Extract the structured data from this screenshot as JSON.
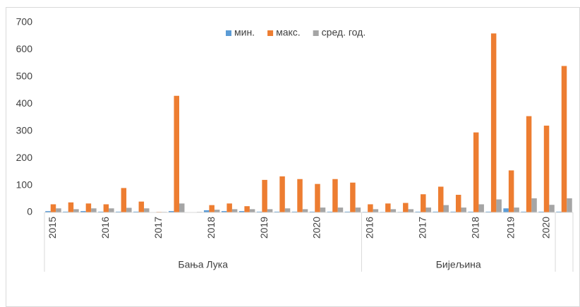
{
  "chart_data": {
    "type": "bar",
    "categories": [
      "2015",
      null,
      null,
      "2016",
      null,
      null,
      "2017",
      null,
      null,
      "2018",
      null,
      null,
      "2019",
      null,
      null,
      "2020",
      null,
      null,
      "2016",
      null,
      null,
      "2017",
      null,
      null,
      "2018",
      null,
      "2019",
      null,
      "2020",
      null
    ],
    "groups": [
      {
        "label": "Бања Лука",
        "count": 18
      },
      {
        "label": "Бијељина",
        "count": 11
      },
      {
        "label": null,
        "count": 1
      }
    ],
    "series": [
      {
        "name": "мин.",
        "color": "#5b9bd5",
        "values": [
          5,
          3,
          5,
          3,
          3,
          3,
          1,
          5,
          1,
          8,
          5,
          5,
          3,
          3,
          3,
          3,
          3,
          3,
          2,
          2,
          2,
          3,
          3,
          3,
          3,
          3,
          15,
          3,
          3,
          3
        ]
      },
      {
        "name": "макс.",
        "color": "#ed7d31",
        "values": [
          30,
          37,
          33,
          30,
          90,
          40,
          2,
          430,
          1,
          27,
          33,
          23,
          120,
          133,
          123,
          105,
          123,
          110,
          30,
          33,
          35,
          67,
          95,
          65,
          295,
          660,
          155,
          355,
          320,
          540
        ]
      },
      {
        "name": "сред. год.",
        "color": "#a5a5a5",
        "values": [
          15,
          12,
          15,
          15,
          17,
          15,
          2,
          33,
          2,
          10,
          12,
          12,
          12,
          15,
          12,
          18,
          18,
          18,
          12,
          12,
          12,
          18,
          27,
          18,
          30,
          48,
          18,
          52,
          28,
          52
        ]
      }
    ],
    "ylim": [
      0,
      700
    ],
    "yticks": [
      0,
      100,
      200,
      300,
      400,
      500,
      600,
      700
    ],
    "legend": "top"
  }
}
